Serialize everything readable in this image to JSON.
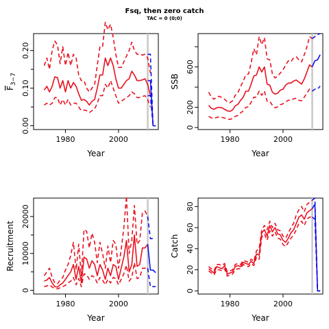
{
  "title": "Fsq, then zero catch",
  "subtitle": "TAC = 0 (0;0)",
  "colors": {
    "historic": "#e8101e",
    "projection": "#1010e8",
    "marker": "#c8c8c8",
    "axis": "#000000"
  },
  "chart_data": [
    {
      "id": "fbar",
      "type": "line",
      "xlabel": "Year",
      "ylabel": "F̄₃₋₇",
      "ylabel_main": "F",
      "ylabel_sub": "3−7",
      "xlim": [
        1968,
        2015
      ],
      "ylim": [
        -0.01,
        0.245
      ],
      "xticks": [
        1980,
        2000
      ],
      "yticks": [
        0.0,
        0.1,
        0.2
      ],
      "ytick_labels": [
        "0.00",
        "0.10",
        "0.20"
      ],
      "minor_yticks": [
        0.05,
        0.15
      ],
      "vline": 2011,
      "historic": {
        "x": [
          1972,
          1973,
          1974,
          1975,
          1976,
          1977,
          1978,
          1979,
          1980,
          1981,
          1982,
          1983,
          1984,
          1985,
          1986,
          1987,
          1988,
          1989,
          1990,
          1991,
          1992,
          1993,
          1994,
          1995,
          1996,
          1997,
          1998,
          1999,
          2000,
          2001,
          2002,
          2003,
          2004,
          2005,
          2006,
          2007,
          2008,
          2009,
          2010,
          2011,
          2012
        ],
        "median": [
          0.095,
          0.105,
          0.09,
          0.105,
          0.13,
          0.128,
          0.1,
          0.12,
          0.09,
          0.12,
          0.1,
          0.115,
          0.105,
          0.085,
          0.068,
          0.07,
          0.065,
          0.055,
          0.065,
          0.07,
          0.1,
          0.135,
          0.135,
          0.18,
          0.16,
          0.18,
          0.16,
          0.125,
          0.1,
          0.1,
          0.11,
          0.12,
          0.125,
          0.145,
          0.135,
          0.12,
          0.12,
          0.122,
          0.125,
          0.11,
          0.08
        ],
        "upper": [
          0.16,
          0.18,
          0.15,
          0.2,
          0.225,
          0.215,
          0.165,
          0.21,
          0.16,
          0.195,
          0.16,
          0.19,
          0.18,
          0.135,
          0.12,
          0.12,
          0.1,
          0.09,
          0.1,
          0.11,
          0.16,
          0.21,
          0.21,
          0.275,
          0.255,
          0.27,
          0.235,
          0.19,
          0.155,
          0.155,
          0.17,
          0.185,
          0.2,
          0.222,
          0.2,
          0.19,
          0.19,
          0.188,
          0.19,
          0.18,
          0.14
        ],
        "lower": [
          0.055,
          0.06,
          0.055,
          0.06,
          0.075,
          0.075,
          0.055,
          0.07,
          0.055,
          0.07,
          0.055,
          0.06,
          0.06,
          0.05,
          0.04,
          0.042,
          0.04,
          0.035,
          0.04,
          0.045,
          0.06,
          0.08,
          0.08,
          0.11,
          0.1,
          0.12,
          0.1,
          0.08,
          0.06,
          0.065,
          0.07,
          0.075,
          0.08,
          0.09,
          0.085,
          0.075,
          0.075,
          0.078,
          0.08,
          0.07,
          0.05
        ]
      },
      "projection": {
        "x": [
          2011,
          2012,
          2013,
          2014
        ],
        "median": [
          0.12,
          0.12,
          0.0,
          0.0
        ],
        "upper": [
          0.19,
          0.19,
          0.0,
          0.0
        ],
        "lower": [
          0.08,
          0.08,
          0.0,
          0.0
        ]
      }
    },
    {
      "id": "ssb",
      "type": "line",
      "xlabel": "Year",
      "ylabel": "SSB",
      "xlim": [
        1968,
        2015
      ],
      "ylim": [
        -20,
        930
      ],
      "xticks": [
        1980,
        2000
      ],
      "yticks": [
        0,
        200,
        400,
        600,
        800
      ],
      "ytick_labels": [
        "0",
        "200",
        "",
        "600",
        ""
      ],
      "vline": 2011,
      "historic": {
        "x": [
          1972,
          1973,
          1974,
          1975,
          1976,
          1977,
          1978,
          1979,
          1980,
          1981,
          1982,
          1983,
          1984,
          1985,
          1986,
          1987,
          1988,
          1989,
          1990,
          1991,
          1992,
          1993,
          1994,
          1995,
          1996,
          1997,
          1998,
          1999,
          2000,
          2001,
          2002,
          2003,
          2004,
          2005,
          2006,
          2007,
          2008,
          2009,
          2010,
          2011
        ],
        "median": [
          220,
          190,
          180,
          195,
          200,
          195,
          180,
          165,
          160,
          175,
          215,
          230,
          270,
          300,
          360,
          360,
          430,
          510,
          520,
          600,
          550,
          600,
          430,
          420,
          350,
          330,
          340,
          370,
          380,
          420,
          440,
          440,
          460,
          470,
          450,
          430,
          480,
          550,
          620,
          600
        ],
        "upper": [
          350,
          300,
          280,
          300,
          310,
          295,
          280,
          255,
          245,
          265,
          320,
          345,
          405,
          460,
          520,
          530,
          640,
          780,
          720,
          900,
          820,
          890,
          680,
          670,
          530,
          490,
          510,
          540,
          570,
          620,
          660,
          650,
          690,
          700,
          670,
          650,
          720,
          800,
          900,
          880
        ],
        "lower": [
          110,
          95,
          90,
          100,
          105,
          100,
          95,
          85,
          80,
          90,
          110,
          120,
          145,
          165,
          200,
          205,
          250,
          300,
          300,
          360,
          320,
          360,
          260,
          260,
          220,
          195,
          205,
          225,
          235,
          255,
          270,
          270,
          285,
          290,
          270,
          265,
          300,
          340,
          380,
          360
        ]
      },
      "projection": {
        "x": [
          2011,
          2012,
          2013,
          2014
        ],
        "median": [
          600,
          660,
          670,
          720
        ],
        "upper": [
          880,
          900,
          920,
          930
        ],
        "lower": [
          360,
          380,
          380,
          410
        ]
      }
    },
    {
      "id": "recruitment",
      "type": "line",
      "xlabel": "Year",
      "ylabel": "Recruitment",
      "xlim": [
        1968,
        2015
      ],
      "ylim": [
        -1000,
        25000
      ],
      "xticks": [
        1980,
        2000
      ],
      "yticks": [
        0,
        10000,
        20000
      ],
      "ytick_labels": [
        "0",
        "10000",
        "20000"
      ],
      "minor_yticks": [
        5000,
        15000
      ],
      "vline": 2011,
      "historic": {
        "x": [
          1972,
          1973,
          1974,
          1975,
          1976,
          1977,
          1978,
          1979,
          1980,
          1981,
          1982,
          1983,
          1984,
          1985,
          1986,
          1987,
          1988,
          1989,
          1990,
          1991,
          1992,
          1993,
          1994,
          1995,
          1996,
          1997,
          1998,
          1999,
          2000,
          2001,
          2002,
          2003,
          2004,
          2005,
          2006,
          2007,
          2008,
          2009,
          2010,
          2011
        ],
        "median": [
          2500,
          2800,
          3500,
          2000,
          1000,
          900,
          1500,
          2000,
          3000,
          4000,
          5000,
          7000,
          3000,
          6500,
          2000,
          9000,
          8500,
          6000,
          8000,
          7000,
          4000,
          7000,
          5500,
          3000,
          6000,
          4000,
          7000,
          6500,
          3000,
          6000,
          9000,
          13500,
          5000,
          7000,
          15000,
          6500,
          7000,
          11500,
          11500,
          12500
        ],
        "upper": [
          4000,
          5000,
          6000,
          3500,
          2000,
          1800,
          2800,
          3500,
          5500,
          7000,
          9500,
          13000,
          5500,
          12500,
          4000,
          16500,
          16000,
          11500,
          15500,
          13000,
          7500,
          13000,
          10000,
          6000,
          12000,
          7500,
          13500,
          12500,
          6000,
          11000,
          17000,
          25500,
          10000,
          13500,
          23000,
          12500,
          13500,
          21000,
          21500,
          20000
        ],
        "lower": [
          1000,
          1200,
          1500,
          900,
          500,
          400,
          700,
          1000,
          1400,
          2000,
          2500,
          3500,
          1500,
          3200,
          1000,
          4500,
          4200,
          3000,
          4000,
          3500,
          2000,
          3500,
          2800,
          1500,
          3000,
          2000,
          3500,
          3200,
          1500,
          3000,
          4500,
          6800,
          2500,
          3500,
          7500,
          3200,
          3500,
          6000,
          6000,
          6000
        ]
      },
      "projection": {
        "x": [
          2011,
          2012,
          2013,
          2014
        ],
        "median": [
          12500,
          5500,
          5500,
          4800
        ],
        "upper": [
          20000,
          14000,
          14000,
          14000
        ],
        "lower": [
          6000,
          1000,
          1000,
          1000
        ]
      }
    },
    {
      "id": "catch",
      "type": "line",
      "xlabel": "Year",
      "ylabel": "Catch",
      "xlim": [
        1968,
        2015
      ],
      "ylim": [
        -3,
        88
      ],
      "xticks": [
        1980,
        2000
      ],
      "yticks": [
        0,
        20,
        40,
        60,
        80
      ],
      "ytick_labels": [
        "0",
        "20",
        "40",
        "60",
        "80"
      ],
      "vline": 2011,
      "historic": {
        "x": [
          1972,
          1973,
          1974,
          1975,
          1976,
          1977,
          1978,
          1979,
          1980,
          1981,
          1982,
          1983,
          1984,
          1985,
          1986,
          1987,
          1988,
          1989,
          1990,
          1991,
          1992,
          1993,
          1994,
          1995,
          1996,
          1997,
          1998,
          1999,
          2000,
          2001,
          2002,
          2003,
          2004,
          2005,
          2006,
          2007,
          2008,
          2009,
          2010,
          2011
        ],
        "median": [
          21,
          19,
          17,
          23,
          22,
          21,
          24,
          16,
          17,
          18,
          23,
          24,
          23,
          27,
          26,
          25,
          28,
          26,
          35,
          34,
          55,
          58,
          52,
          62,
          56,
          60,
          54,
          53,
          48,
          46,
          50,
          55,
          58,
          64,
          70,
          72,
          68,
          74,
          76,
          78
        ],
        "upper": [
          23,
          21,
          19,
          25,
          25,
          24,
          26,
          18,
          19,
          20,
          25,
          26,
          25,
          29,
          28,
          27,
          30,
          28,
          38,
          40,
          58,
          62,
          58,
          66,
          60,
          64,
          58,
          57,
          52,
          50,
          55,
          60,
          64,
          72,
          77,
          80,
          75,
          82,
          84,
          86
        ],
        "lower": [
          19,
          17,
          15,
          20,
          20,
          19,
          21,
          14,
          15,
          16,
          20,
          21,
          21,
          25,
          24,
          23,
          26,
          24,
          32,
          30,
          51,
          54,
          48,
          57,
          52,
          56,
          50,
          49,
          44,
          42,
          46,
          50,
          53,
          58,
          64,
          66,
          62,
          68,
          70,
          70
        ]
      },
      "projection": {
        "x": [
          2011,
          2012,
          2013,
          2014
        ],
        "median": [
          78,
          82,
          0,
          0
        ],
        "upper": [
          86,
          88,
          0,
          0
        ],
        "lower": [
          70,
          68,
          0,
          0
        ]
      }
    }
  ]
}
